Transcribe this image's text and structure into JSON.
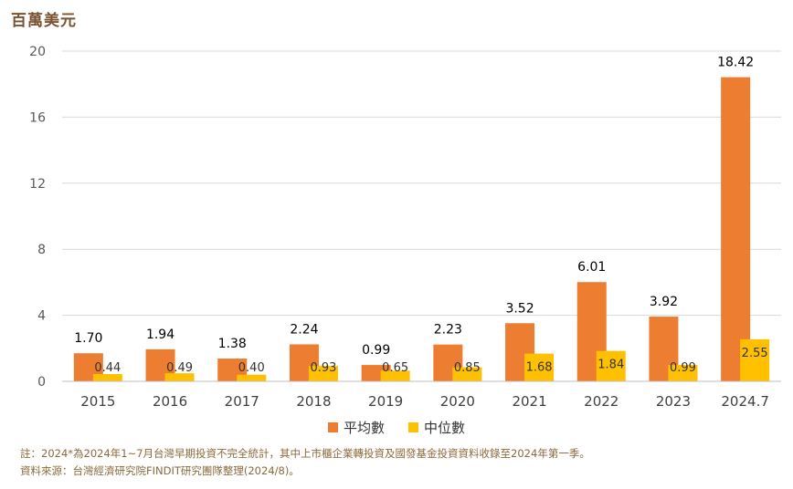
{
  "unit_label": "百萬美元",
  "notes": {
    "note": "註：2024*為2024年1~7月台灣早期投資不完全統計，其中上市櫃企業轉投資及國發基金投資資料收錄至2024年第一季。",
    "source": "資料來源：台灣經濟研究院FINDIT研究團隊整理(2024/8)。"
  },
  "colors": {
    "average": "#ED7D31",
    "median": "#FFC000",
    "grid": "#d9d9d9",
    "axis_text": "#595959"
  },
  "chart_data": {
    "type": "bar",
    "categories": [
      "2015",
      "2016",
      "2017",
      "2018",
      "2019",
      "2020",
      "2021",
      "2022",
      "2023",
      "2024.7"
    ],
    "series": [
      {
        "name": "平均數",
        "values": [
          1.7,
          1.94,
          1.38,
          2.24,
          0.99,
          2.23,
          3.52,
          6.01,
          3.92,
          18.42
        ],
        "labels": [
          "1.70",
          "1.94",
          "1.38",
          "2.24",
          "0.99",
          "2.23",
          "3.52",
          "6.01",
          "3.92",
          "18.42"
        ]
      },
      {
        "name": "中位數",
        "values": [
          0.44,
          0.49,
          0.4,
          0.93,
          0.65,
          0.85,
          1.68,
          1.84,
          0.99,
          2.55
        ],
        "labels": [
          "0.44",
          "0.49",
          "0.40",
          "0.93",
          "0.65",
          "0.85",
          "1.68",
          "1.84",
          "0.99",
          "2.55"
        ]
      }
    ],
    "ylim": [
      0,
      20
    ],
    "yticks": [
      "0",
      "4",
      "8",
      "12",
      "16",
      "20"
    ],
    "grid": true,
    "legend_position": "bottom"
  }
}
